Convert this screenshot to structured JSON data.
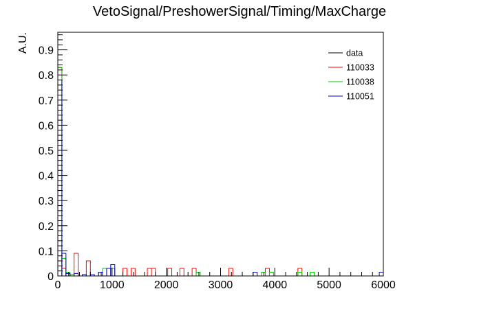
{
  "chart_data": {
    "type": "histogram",
    "title": "VetoSignal/PreshowerSignal/Timing/MaxCharge",
    "xlabel": "",
    "ylabel": "A.U.",
    "xlim": [
      0,
      6000
    ],
    "ylim": [
      0,
      0.97
    ],
    "bin_width": 75,
    "x_ticks": [
      "0",
      "1000",
      "2000",
      "3000",
      "4000",
      "5000",
      "6000"
    ],
    "y_ticks": [
      "0",
      "0.1",
      "0.2",
      "0.3",
      "0.4",
      "0.5",
      "0.6",
      "0.7",
      "0.8",
      "0.9"
    ],
    "legend_position": "top-right",
    "grid": false,
    "series": [
      {
        "name": "data",
        "color": "#000000",
        "bins": []
      },
      {
        "name": "110033",
        "color": "#ff0000",
        "bins": [
          [
            0,
            0.83
          ],
          [
            75,
            0.03
          ],
          [
            150,
            0.01
          ],
          [
            225,
            0.005
          ],
          [
            300,
            0.09
          ],
          [
            525,
            0.06
          ],
          [
            750,
            0.015
          ],
          [
            975,
            0.03
          ],
          [
            1200,
            0.03
          ],
          [
            1350,
            0.03
          ],
          [
            1650,
            0.03
          ],
          [
            1725,
            0.03
          ],
          [
            2025,
            0.03
          ],
          [
            2250,
            0.03
          ],
          [
            2475,
            0.03
          ],
          [
            3150,
            0.03
          ],
          [
            3825,
            0.03
          ],
          [
            4425,
            0.03
          ]
        ]
      },
      {
        "name": "110038",
        "color": "#00cc00",
        "bins": [
          [
            0,
            0.83
          ],
          [
            75,
            0.07
          ],
          [
            150,
            0.015
          ],
          [
            225,
            0.005
          ],
          [
            450,
            0.005
          ],
          [
            750,
            0.015
          ],
          [
            825,
            0.03
          ],
          [
            975,
            0.03
          ],
          [
            2550,
            0.015
          ],
          [
            3750,
            0.015
          ],
          [
            3900,
            0.015
          ],
          [
            4425,
            0.015
          ],
          [
            4650,
            0.015
          ]
        ]
      },
      {
        "name": "110051",
        "color": "#0000cc",
        "bins": [
          [
            0,
            0.78
          ],
          [
            75,
            0.09
          ],
          [
            150,
            0.01
          ],
          [
            300,
            0.01
          ],
          [
            450,
            0.005
          ],
          [
            600,
            0.005
          ],
          [
            750,
            0.015
          ],
          [
            900,
            0.03
          ],
          [
            975,
            0.045
          ],
          [
            3600,
            0.015
          ],
          [
            5925,
            0.015
          ]
        ]
      }
    ]
  }
}
